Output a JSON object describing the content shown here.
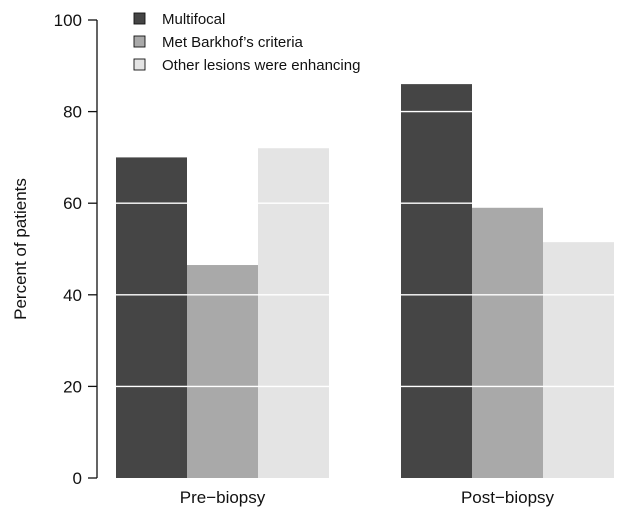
{
  "chart_data": {
    "type": "bar",
    "title": "",
    "xlabel": "",
    "ylabel": "Percent of patients",
    "ylim": [
      0,
      100
    ],
    "yticks": [
      0,
      20,
      40,
      60,
      80,
      100
    ],
    "categories": [
      "Pre−biopsy",
      "Post−biopsy"
    ],
    "series": [
      {
        "name": "Multifocal",
        "values": [
          70,
          86
        ],
        "color": "#454545"
      },
      {
        "name": "Met Barkhof’s criteria",
        "values": [
          46.5,
          59
        ],
        "color": "#a9a9a9"
      },
      {
        "name": "Other lesions were enhancing",
        "values": [
          72,
          51.5
        ],
        "color": "#e4e4e4"
      }
    ],
    "grid": "white horizontal lines over bars at y ticks",
    "legend_position": "top-left"
  }
}
